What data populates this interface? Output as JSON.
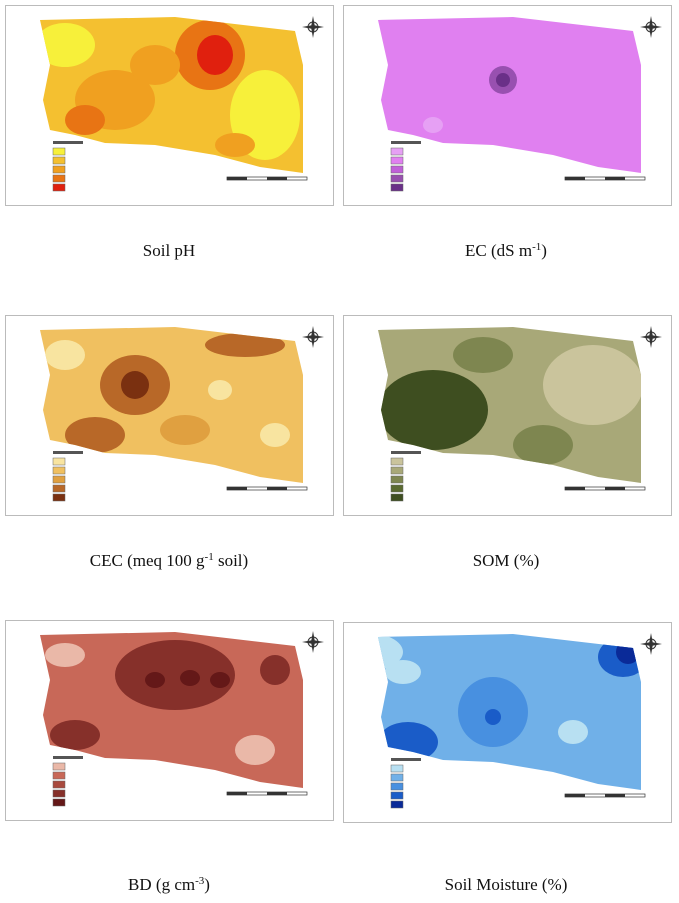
{
  "panels": [
    {
      "caption": "Soil pH"
    },
    {
      "caption": "EC (dS m",
      "caption_sup": "-1",
      "caption_end": ")"
    },
    {
      "caption": "CEC (meq 100 g",
      "caption_sup": "-1",
      "caption_end": " soil)"
    },
    {
      "caption": "SOM (%)"
    },
    {
      "caption": "BD (g cm",
      "caption_sup": "-3",
      "caption_end": ")"
    },
    {
      "caption": "Soil Moisture (%)"
    }
  ]
}
